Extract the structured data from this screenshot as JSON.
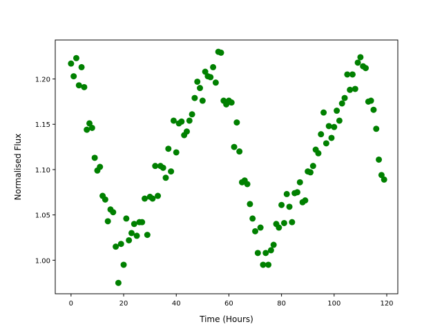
{
  "chart_data": {
    "type": "scatter",
    "x_label": "Time (Hours)",
    "y_label": "Normalised Flux",
    "color": "#008000",
    "x": [
      0,
      1,
      2,
      3,
      4,
      5,
      6,
      7,
      8,
      9,
      10,
      11,
      12,
      13,
      14,
      15,
      16,
      17,
      18,
      19,
      20,
      21,
      22,
      23,
      24,
      25,
      26,
      27,
      28,
      29,
      30,
      31,
      32,
      33,
      34,
      35,
      36,
      37,
      38,
      39,
      40,
      41,
      42,
      43,
      44,
      45,
      46,
      47,
      48,
      49,
      50,
      51,
      52,
      53,
      54,
      55,
      56,
      57,
      58,
      59,
      60,
      61,
      62,
      63,
      64,
      65,
      66,
      67,
      68,
      69,
      70,
      71,
      72,
      73,
      74,
      75,
      76,
      77,
      78,
      79,
      80,
      81,
      82,
      83,
      84,
      85,
      86,
      87,
      88,
      89,
      90,
      91,
      92,
      93,
      94,
      95,
      96,
      97,
      98,
      99,
      100,
      101,
      102,
      103,
      104,
      105,
      106,
      107,
      108,
      109,
      110,
      111,
      112,
      113,
      114,
      115,
      116,
      117,
      118,
      119
    ],
    "values": [
      1.217,
      1.203,
      1.223,
      1.193,
      1.213,
      1.191,
      1.144,
      1.151,
      1.146,
      1.113,
      1.099,
      1.103,
      1.071,
      1.067,
      1.043,
      1.056,
      1.053,
      1.015,
      0.975,
      1.018,
      0.995,
      1.046,
      1.022,
      1.03,
      1.04,
      1.027,
      1.042,
      1.042,
      1.068,
      1.028,
      1.07,
      1.068,
      1.104,
      1.071,
      1.104,
      1.102,
      1.091,
      1.123,
      1.098,
      1.154,
      1.119,
      1.151,
      1.153,
      1.138,
      1.142,
      1.154,
      1.161,
      1.179,
      1.197,
      1.19,
      1.176,
      1.208,
      1.203,
      1.202,
      1.213,
      1.196,
      1.23,
      1.229,
      1.176,
      1.172,
      1.176,
      1.174,
      1.125,
      1.152,
      1.12,
      1.086,
      1.088,
      1.084,
      1.062,
      1.046,
      1.032,
      1.008,
      1.036,
      0.995,
      1.008,
      0.995,
      1.011,
      1.017,
      1.04,
      1.036,
      1.061,
      1.041,
      1.073,
      1.059,
      1.042,
      1.074,
      1.075,
      1.086,
      1.064,
      1.066,
      1.098,
      1.097,
      1.104,
      1.122,
      1.118,
      1.139,
      1.163,
      1.129,
      1.148,
      1.135,
      1.147,
      1.165,
      1.154,
      1.173,
      1.179,
      1.205,
      1.188,
      1.205,
      1.189,
      1.218,
      1.224,
      1.214,
      1.212,
      1.175,
      1.176,
      1.166,
      1.145,
      1.111,
      1.094,
      1.089
    ],
    "xlim": [
      -6,
      124.2
    ],
    "ylim": [
      0.963,
      1.243
    ],
    "xticks": [
      0,
      20,
      40,
      60,
      80,
      100,
      120
    ],
    "yticks": [
      {
        "value": 1,
        "label": "1.00"
      },
      1.05,
      {
        "value": 1.1,
        "label": "1.10"
      },
      1.15,
      {
        "value": 1.2,
        "label": "1.20"
      }
    ]
  }
}
